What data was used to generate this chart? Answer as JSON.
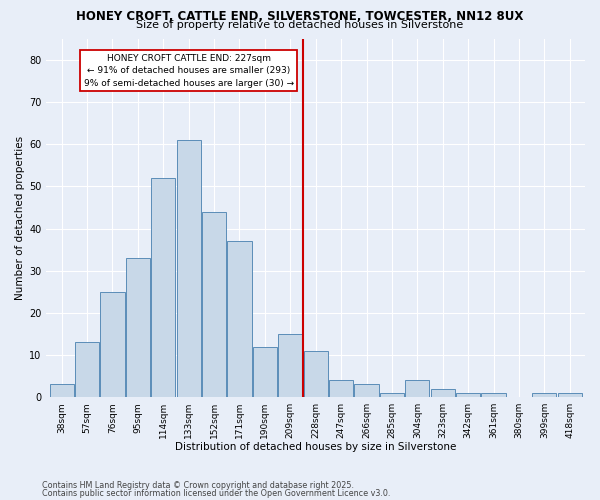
{
  "title1": "HONEY CROFT, CATTLE END, SILVERSTONE, TOWCESTER, NN12 8UX",
  "title2": "Size of property relative to detached houses in Silverstone",
  "xlabel": "Distribution of detached houses by size in Silverstone",
  "ylabel": "Number of detached properties",
  "categories": [
    "38sqm",
    "57sqm",
    "76sqm",
    "95sqm",
    "114sqm",
    "133sqm",
    "152sqm",
    "171sqm",
    "190sqm",
    "209sqm",
    "228sqm",
    "247sqm",
    "266sqm",
    "285sqm",
    "304sqm",
    "323sqm",
    "342sqm",
    "361sqm",
    "380sqm",
    "399sqm",
    "418sqm"
  ],
  "values": [
    3,
    13,
    25,
    33,
    52,
    61,
    44,
    37,
    12,
    15,
    11,
    4,
    3,
    1,
    4,
    2,
    1,
    1,
    0,
    1,
    1
  ],
  "bar_color": "#c8d8e8",
  "bar_edge_color": "#5b8db8",
  "vline_color": "#cc0000",
  "annotation_line1": "HONEY CROFT CATTLE END: 227sqm",
  "annotation_line2": "← 91% of detached houses are smaller (293)",
  "annotation_line3": "9% of semi-detached houses are larger (30) →",
  "annotation_box_facecolor": "#ffffff",
  "annotation_box_edgecolor": "#cc0000",
  "ylim": [
    0,
    85
  ],
  "yticks": [
    0,
    10,
    20,
    30,
    40,
    50,
    60,
    70,
    80
  ],
  "bg_color": "#e8eef8",
  "footer1": "Contains HM Land Registry data © Crown copyright and database right 2025.",
  "footer2": "Contains public sector information licensed under the Open Government Licence v3.0."
}
